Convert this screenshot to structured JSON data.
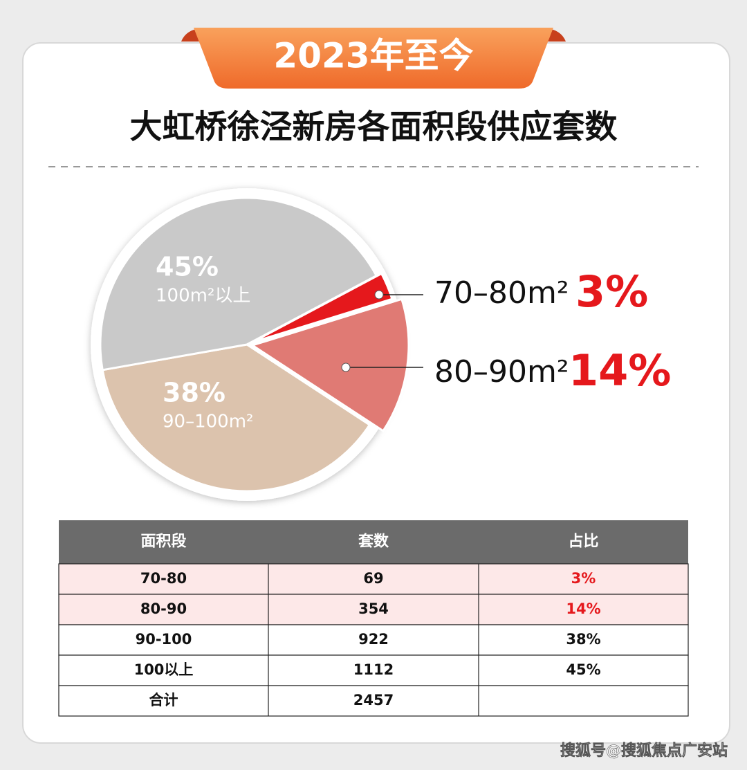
{
  "badge": "2023年至今",
  "chart_data": {
    "type": "pie",
    "title": "大虹桥徐泾新房各面积段供应套数",
    "categories": [
      "70–80m²",
      "80–90m²",
      "90–100m²",
      "100m²以上"
    ],
    "values": [
      3,
      14,
      38,
      45
    ],
    "value_labels": [
      "3%",
      "14%",
      "38%",
      "45%"
    ],
    "colors": [
      "#e5181c",
      "#e07a74",
      "#dcc3ad",
      "#c9c9c9"
    ]
  },
  "table": {
    "header": [
      "面积段",
      "套数",
      "占比"
    ],
    "rows": [
      [
        "70-80",
        69,
        "3%"
      ],
      [
        "80-90",
        354,
        "14%"
      ],
      [
        "90-100",
        922,
        "38%"
      ],
      [
        "100以上",
        1112,
        "45%"
      ],
      [
        "合计",
        2457
      ]
    ]
  },
  "watermark": "搜狐号@搜狐焦点广安站"
}
